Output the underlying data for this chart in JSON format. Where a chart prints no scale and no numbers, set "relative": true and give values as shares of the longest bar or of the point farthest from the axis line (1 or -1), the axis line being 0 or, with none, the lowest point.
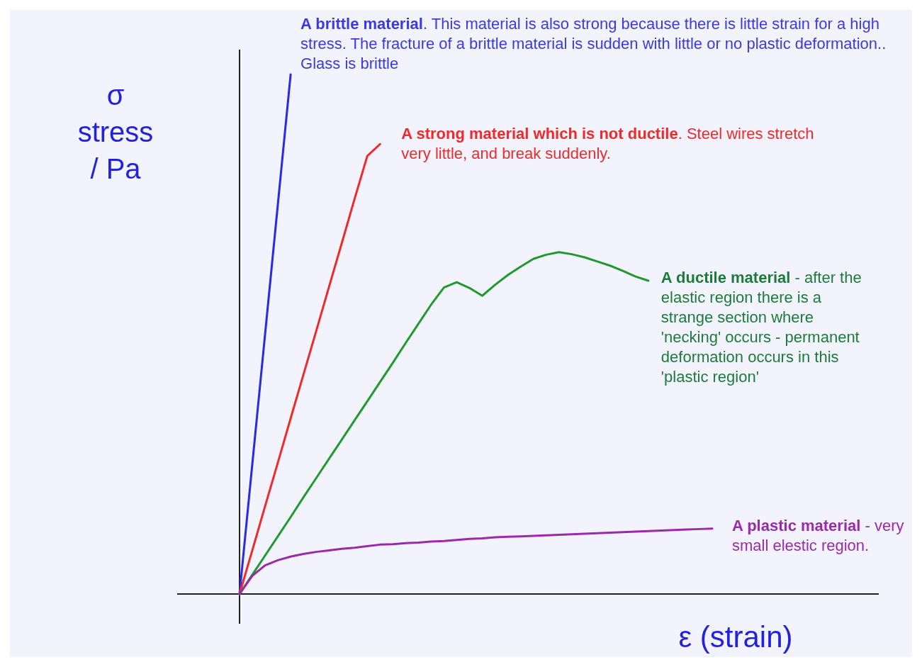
{
  "chart_data": {
    "type": "line",
    "relative": true,
    "xlabel": "ε  (strain)",
    "ylabel": "σ\nstress\n/ Pa",
    "categories": [
      null,
      null,
      null,
      null,
      null,
      null,
      null,
      null,
      null,
      null,
      null,
      null,
      null,
      null,
      null,
      null,
      null,
      null,
      null,
      null,
      null,
      null,
      null,
      null,
      null,
      null,
      null,
      null,
      null,
      null,
      null,
      null,
      null,
      null,
      null,
      null,
      null,
      null
    ],
    "series": [
      {
        "name": "A brittle  material",
        "color": "#2a2ae6",
        "values": [
          0,
          0.25,
          0.5,
          0.75,
          1,
          null,
          null,
          null,
          null,
          null,
          null,
          null,
          null,
          null,
          null,
          null,
          null,
          null,
          null,
          null,
          null,
          null,
          null,
          null,
          null,
          null,
          null,
          null,
          null,
          null,
          null,
          null,
          null,
          null,
          null,
          null,
          null,
          null
        ]
      },
      {
        "name": "A strong material which is not ductile",
        "color": "#ee2a2a",
        "values": [
          0,
          0.084,
          0.169,
          0.253,
          0.338,
          0.422,
          0.506,
          0.591,
          0.675,
          0.76,
          0.843,
          0.866,
          null,
          null,
          null,
          null,
          null,
          null,
          null,
          null,
          null,
          null,
          null,
          null,
          null,
          null,
          null,
          null,
          null,
          null,
          null,
          null,
          null,
          null,
          null,
          null,
          null,
          null
        ]
      },
      {
        "name": "A ductile  material",
        "color": "#1e9a2e",
        "values": [
          0,
          0.037,
          0.074,
          0.111,
          0.148,
          0.186,
          0.223,
          0.26,
          0.297,
          0.334,
          0.371,
          0.408,
          0.445,
          0.483,
          0.52,
          0.557,
          0.59,
          0.6,
          0.589,
          0.574,
          0.595,
          0.614,
          0.63,
          0.645,
          0.653,
          0.658,
          0.654,
          0.648,
          0.64,
          0.632,
          0.622,
          0.611,
          0.603,
          null,
          null,
          null,
          null,
          null
        ]
      },
      {
        "name": "A plastic  material",
        "color": "#9a2aaa",
        "values": [
          0,
          0.035,
          0.055,
          0.065,
          0.072,
          0.077,
          0.081,
          0.084,
          0.087,
          0.089,
          0.092,
          0.095,
          0.096,
          0.098,
          0.099,
          0.101,
          0.102,
          0.104,
          0.106,
          0.107,
          0.109,
          0.11,
          0.111,
          0.112,
          0.113,
          0.114,
          0.115,
          0.116,
          0.117,
          0.118,
          0.119,
          0.12,
          0.121,
          0.122,
          0.123,
          0.124,
          0.125,
          0.126
        ]
      }
    ],
    "annotations": [
      ". This material is also strong because there is little strain for a high stress.  The fracture of a brittle material is sudden with little or no plastic deformation.. Glass is brittle",
      ".  Steel wires stretch very little, and break suddenly.",
      " - after the elastic region there is a strange section where 'necking' occurs - permanent deformation occurs in this 'plastic region'",
      " - very small elestic region."
    ]
  }
}
